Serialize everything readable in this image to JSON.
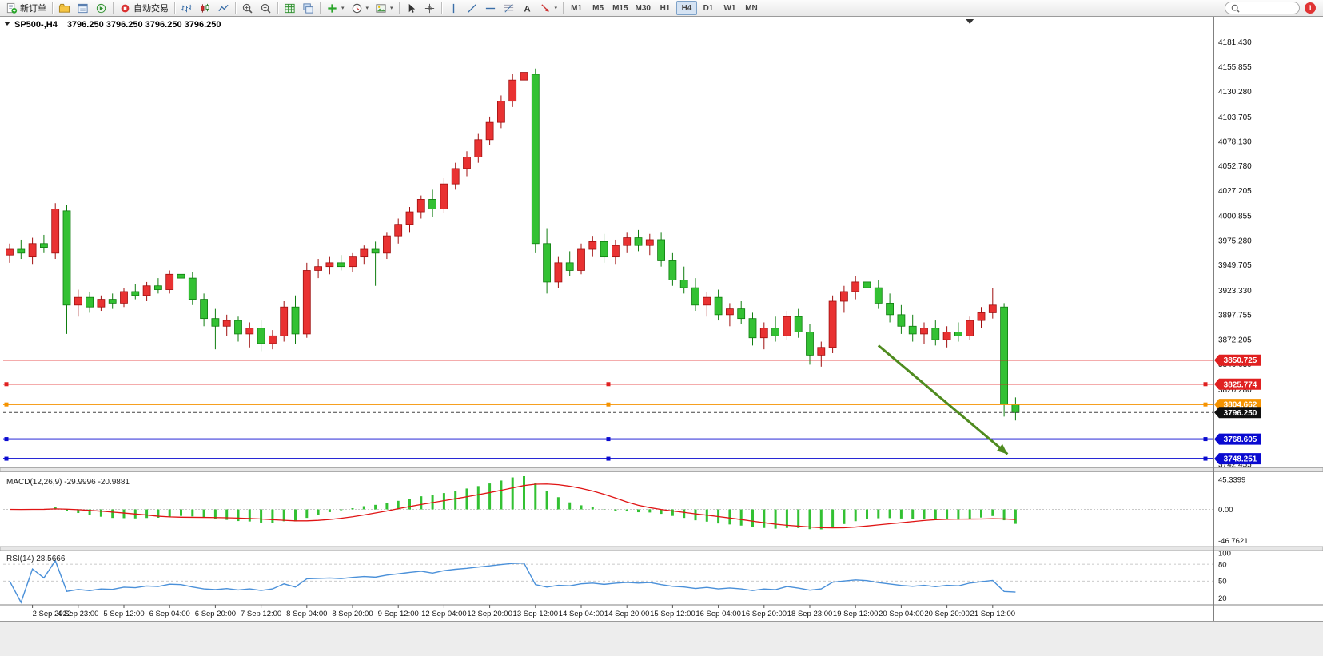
{
  "window": {
    "search_placeholder": ""
  },
  "toolbar": {
    "notification_count": "1",
    "timeframes": [
      "M1",
      "M5",
      "M15",
      "M30",
      "H1",
      "H4",
      "D1",
      "W1",
      "MN"
    ],
    "active_timeframe": "H4",
    "groups": [
      {
        "items": [
          {
            "name": "new-order-button",
            "icon": "new-order",
            "label": "新订单"
          }
        ]
      },
      {
        "items": [
          {
            "name": "charts-profile-button",
            "icon": "folder"
          },
          {
            "name": "data-window-button",
            "icon": "data-window"
          },
          {
            "name": "market-watch-button",
            "icon": "tester"
          }
        ]
      },
      {
        "items": [
          {
            "name": "autotrading-button",
            "icon": "autotrade",
            "label": "自动交易"
          }
        ]
      },
      {
        "items": [
          {
            "name": "bar-chart-button",
            "icon": "bars"
          },
          {
            "name": "candlestick-chart-button",
            "icon": "candles"
          },
          {
            "name": "line-chart-button",
            "icon": "line"
          }
        ]
      },
      {
        "items": [
          {
            "name": "zoom-in-button",
            "icon": "zoom-in"
          },
          {
            "name": "zoom-out-button",
            "icon": "zoom-out"
          }
        ]
      },
      {
        "items": [
          {
            "name": "tile-windows-button",
            "icon": "grid"
          },
          {
            "name": "cascade-windows-button",
            "icon": "cascade"
          }
        ]
      },
      {
        "items": [
          {
            "name": "indicators-button",
            "icon": "plus",
            "dropdown": true
          },
          {
            "name": "periods-button",
            "icon": "clock",
            "dropdown": true
          },
          {
            "name": "templates-button",
            "icon": "image",
            "dropdown": true
          }
        ]
      },
      {
        "items": [
          {
            "name": "cursor-button",
            "icon": "cursor"
          },
          {
            "name": "crosshair-button",
            "icon": "crosshair"
          }
        ]
      },
      {
        "items": [
          {
            "name": "vertical-line-button",
            "icon": "vline"
          },
          {
            "name": "trendline-button",
            "icon": "tline"
          },
          {
            "name": "horizontal-line-button",
            "icon": "hline"
          },
          {
            "name": "fibonacci-button",
            "icon": "fibo"
          },
          {
            "name": "text-button",
            "icon": "textA"
          },
          {
            "name": "arrows-button",
            "icon": "arrowobj",
            "dropdown": true
          }
        ]
      }
    ]
  },
  "chart": {
    "title": "SP500-,H4",
    "ohlc_text": "3796.250 3796.250 3796.250 3796.250",
    "macd_label": "MACD(12,26,9)",
    "macd_values": "-29.9996 -20.9881",
    "rsi_label": "RSI(14)",
    "rsi_value": "28.5666"
  },
  "chart_data": {
    "type": "candlestick",
    "symbol": "SP500-",
    "timeframe": "H4",
    "price_range": [
      3740,
      4192
    ],
    "price_axis_labels": [
      "4181.430",
      "4155.855",
      "4130.280",
      "4103.705",
      "4078.130",
      "4052.780",
      "4027.205",
      "4000.855",
      "3975.280",
      "3949.705",
      "3923.330",
      "3897.755",
      "3872.205",
      "3846.630",
      "3820.280",
      "3742.455"
    ],
    "ohlc_header": [
      "open",
      "high",
      "low",
      "close"
    ],
    "candles": [
      [
        3960,
        3972,
        3952,
        3966
      ],
      [
        3966,
        3976,
        3956,
        3962
      ],
      [
        3958,
        3978,
        3950,
        3972
      ],
      [
        3972,
        3981,
        3962,
        3968
      ],
      [
        3962,
        4014,
        3956,
        4008
      ],
      [
        4006,
        4012,
        3878,
        3908
      ],
      [
        3908,
        3924,
        3896,
        3916
      ],
      [
        3916,
        3922,
        3900,
        3906
      ],
      [
        3906,
        3918,
        3902,
        3914
      ],
      [
        3914,
        3920,
        3904,
        3910
      ],
      [
        3910,
        3926,
        3906,
        3922
      ],
      [
        3922,
        3930,
        3914,
        3918
      ],
      [
        3918,
        3932,
        3912,
        3928
      ],
      [
        3928,
        3936,
        3920,
        3924
      ],
      [
        3924,
        3944,
        3920,
        3940
      ],
      [
        3940,
        3950,
        3932,
        3936
      ],
      [
        3936,
        3942,
        3908,
        3914
      ],
      [
        3914,
        3920,
        3886,
        3894
      ],
      [
        3894,
        3904,
        3862,
        3886
      ],
      [
        3886,
        3898,
        3876,
        3892
      ],
      [
        3892,
        3896,
        3870,
        3878
      ],
      [
        3878,
        3890,
        3864,
        3884
      ],
      [
        3884,
        3892,
        3860,
        3868
      ],
      [
        3868,
        3882,
        3862,
        3876
      ],
      [
        3876,
        3912,
        3870,
        3906
      ],
      [
        3906,
        3918,
        3868,
        3878
      ],
      [
        3878,
        3952,
        3874,
        3944
      ],
      [
        3944,
        3956,
        3936,
        3948
      ],
      [
        3948,
        3958,
        3940,
        3952
      ],
      [
        3952,
        3960,
        3944,
        3948
      ],
      [
        3948,
        3962,
        3942,
        3958
      ],
      [
        3958,
        3970,
        3950,
        3966
      ],
      [
        3966,
        3974,
        3928,
        3962
      ],
      [
        3962,
        3984,
        3956,
        3980
      ],
      [
        3980,
        3998,
        3972,
        3992
      ],
      [
        3992,
        4010,
        3984,
        4005
      ],
      [
        4005,
        4022,
        3998,
        4018
      ],
      [
        4018,
        4028,
        4000,
        4008
      ],
      [
        4008,
        4040,
        4004,
        4034
      ],
      [
        4034,
        4056,
        4028,
        4050
      ],
      [
        4050,
        4068,
        4042,
        4062
      ],
      [
        4062,
        4086,
        4056,
        4080
      ],
      [
        4080,
        4104,
        4074,
        4098
      ],
      [
        4098,
        4126,
        4092,
        4120
      ],
      [
        4120,
        4148,
        4114,
        4142
      ],
      [
        4142,
        4158,
        4128,
        4150
      ],
      [
        4148,
        4154,
        3962,
        3972
      ],
      [
        3972,
        3988,
        3920,
        3932
      ],
      [
        3932,
        3958,
        3926,
        3952
      ],
      [
        3952,
        3964,
        3938,
        3944
      ],
      [
        3944,
        3972,
        3940,
        3966
      ],
      [
        3966,
        3980,
        3958,
        3974
      ],
      [
        3974,
        3982,
        3952,
        3958
      ],
      [
        3958,
        3976,
        3950,
        3970
      ],
      [
        3970,
        3984,
        3962,
        3978
      ],
      [
        3978,
        3986,
        3964,
        3970
      ],
      [
        3970,
        3982,
        3960,
        3976
      ],
      [
        3976,
        3984,
        3948,
        3954
      ],
      [
        3954,
        3962,
        3928,
        3934
      ],
      [
        3934,
        3948,
        3920,
        3926
      ],
      [
        3926,
        3936,
        3902,
        3908
      ],
      [
        3908,
        3922,
        3896,
        3916
      ],
      [
        3916,
        3924,
        3892,
        3898
      ],
      [
        3898,
        3910,
        3886,
        3904
      ],
      [
        3904,
        3912,
        3888,
        3894
      ],
      [
        3894,
        3900,
        3866,
        3874
      ],
      [
        3874,
        3890,
        3862,
        3884
      ],
      [
        3884,
        3896,
        3870,
        3876
      ],
      [
        3876,
        3902,
        3872,
        3896
      ],
      [
        3896,
        3904,
        3874,
        3880
      ],
      [
        3880,
        3888,
        3846,
        3856
      ],
      [
        3856,
        3870,
        3844,
        3864
      ],
      [
        3864,
        3918,
        3858,
        3912
      ],
      [
        3912,
        3928,
        3900,
        3922
      ],
      [
        3922,
        3938,
        3914,
        3932
      ],
      [
        3932,
        3940,
        3918,
        3926
      ],
      [
        3926,
        3934,
        3904,
        3910
      ],
      [
        3910,
        3920,
        3890,
        3898
      ],
      [
        3898,
        3908,
        3878,
        3886
      ],
      [
        3886,
        3898,
        3870,
        3878
      ],
      [
        3878,
        3890,
        3868,
        3884
      ],
      [
        3884,
        3892,
        3866,
        3872
      ],
      [
        3872,
        3886,
        3864,
        3880
      ],
      [
        3880,
        3890,
        3870,
        3876
      ],
      [
        3876,
        3896,
        3872,
        3892
      ],
      [
        3892,
        3906,
        3884,
        3900
      ],
      [
        3900,
        3926,
        3894,
        3908
      ],
      [
        3906,
        3910,
        3792,
        3805
      ],
      [
        3805,
        3812,
        3788,
        3796.25
      ]
    ],
    "time_labels": [
      "2 Sep 2022",
      "4 Sep 23:00",
      "5 Sep 12:00",
      "6 Sep 04:00",
      "6 Sep 20:00",
      "7 Sep 12:00",
      "8 Sep 04:00",
      "8 Sep 20:00",
      "9 Sep 12:00",
      "12 Sep 04:00",
      "12 Sep 20:00",
      "13 Sep 12:00",
      "14 Sep 04:00",
      "14 Sep 20:00",
      "15 Sep 12:00",
      "16 Sep 04:00",
      "16 Sep 20:00",
      "18 Sep 23:00",
      "19 Sep 12:00",
      "20 Sep 04:00",
      "20 Sep 20:00",
      "21 Sep 12:00"
    ],
    "first_label_candle": 2,
    "label_step_candles": 4,
    "shift_marker_candle": 84,
    "hlines": [
      {
        "price": 3850.725,
        "label": "3850.725",
        "color": "#e02020",
        "width": 1.2,
        "handles": false
      },
      {
        "price": 3825.774,
        "label": "3825.774",
        "color": "#e02020",
        "width": 1.2,
        "handles": true
      },
      {
        "price": 3804.662,
        "label": "3804.662",
        "color": "#f59300",
        "width": 1.4,
        "handles": true
      },
      {
        "price": 3768.605,
        "label": "3768.605",
        "color": "#0a0ad0",
        "width": 1.8,
        "handles": true
      },
      {
        "price": 3748.251,
        "label": "3748.251",
        "color": "#0a0ad0",
        "width": 1.8,
        "handles": true
      }
    ],
    "current_price": {
      "value": 3796.25,
      "label": "3796.250",
      "box_color": "#101010"
    },
    "arrow": {
      "from": {
        "candle": 76,
        "price": 3866
      },
      "to": {
        "candle": 87.3,
        "price": 3753
      },
      "color": "#4f8b1f"
    },
    "macd": {
      "params": [
        12,
        26,
        9
      ],
      "axis_labels": [
        {
          "text": "45.3399",
          "value": 45.3399
        },
        {
          "text": "0.00",
          "value": 0
        },
        {
          "text": "-46.7621",
          "value": -46.7621
        }
      ],
      "range": [
        -50,
        50
      ],
      "hist_color": "#33c133",
      "signal_color": "#e01414"
    },
    "rsi": {
      "period": 14,
      "axis_labels": [
        {
          "text": "100",
          "value": 100
        },
        {
          "text": "80",
          "value": 80
        },
        {
          "text": "50",
          "value": 50
        },
        {
          "text": "20",
          "value": 20
        }
      ],
      "levels": [
        80,
        50,
        20
      ],
      "range": [
        12,
        100
      ],
      "line_color": "#4a90d9"
    },
    "colors": {
      "up": "#e93232",
      "up_stroke": "#a00f0f",
      "down": "#33c133",
      "down_stroke": "#0f7d0f",
      "axis_text": "#111111",
      "background": "#ffffff"
    }
  }
}
